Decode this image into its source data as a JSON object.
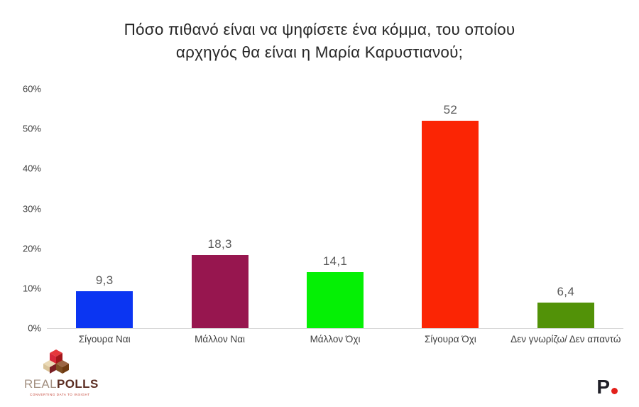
{
  "title": "Πόσο πιθανό είναι να ψηφίσετε ένα κόμμα, του οποίου αρχηγός θα είναι η Μαρία Καρυστιανού;",
  "chart_data": {
    "type": "bar",
    "title": "Πόσο πιθανό είναι να ψηφίσετε ένα κόμμα, του οποίου αρχηγός θα είναι η Μαρία Καρυστιανού;",
    "categories": [
      "Σίγουρα Ναι",
      "Μάλλον Ναι",
      "Μάλλον Όχι",
      "Σίγουρα Όχι",
      "Δεν γνωρίζω/ Δεν απαντώ"
    ],
    "values": [
      9.3,
      18.3,
      14.1,
      52,
      6.4
    ],
    "value_labels": [
      "9,3",
      "18,3",
      "14,1",
      "52",
      "6,4"
    ],
    "bar_colors": [
      "#0b35f2",
      "#97164f",
      "#05f005",
      "#fb2504",
      "#529208"
    ],
    "xlabel": "",
    "ylabel": "",
    "ylim": [
      0,
      60
    ],
    "ytick_values": [
      0,
      10,
      20,
      30,
      40,
      50,
      60
    ],
    "ytick_suffix": "%",
    "grid": false,
    "legend": false,
    "axis_line_color": "#d8d8d8",
    "background": "#ffffff"
  },
  "footer": {
    "realpolls": {
      "real": "REAL",
      "polls": "POLLS",
      "tagline": "CONVERTING DATA TO INSIGHT"
    },
    "publisher_mark": "P"
  }
}
